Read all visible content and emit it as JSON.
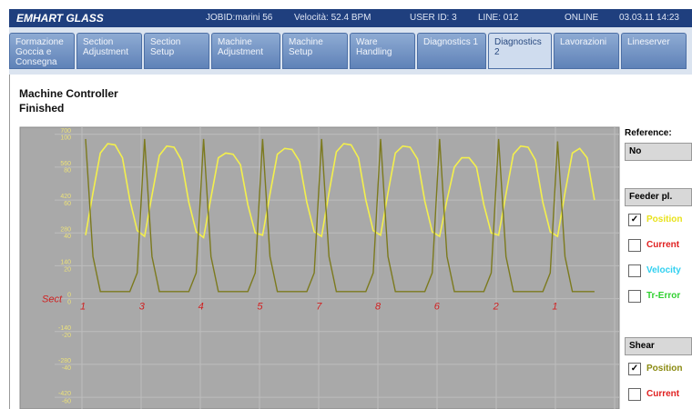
{
  "header": {
    "brand": "EMHART GLASS",
    "job": "JOBID:marini 56",
    "speed": "Velocità: 52.4 BPM",
    "user": "USER ID: 3",
    "line": "LINE: 012",
    "status": "ONLINE",
    "datetime": "03.03.11 14:23"
  },
  "tabs": [
    "Formazione Goccia e Consegna",
    "Section Adjustment",
    "Section Setup",
    "Machine Adjustment",
    "Machine Setup",
    "Ware Handling",
    "Diagnostics 1",
    "Diagnostics 2",
    "Lavorazioni",
    "Lineserver"
  ],
  "active_tab": 7,
  "content": {
    "title": "Machine Controller",
    "status": "Finished"
  },
  "plot": {
    "ylim": [
      -470,
      730
    ],
    "yticks": [
      700,
      560,
      420,
      280,
      140,
      0,
      -140,
      -280,
      -420
    ],
    "y2lim": [
      -67,
      104
    ],
    "y2ticks": [
      100,
      80,
      60,
      40,
      20,
      0,
      -20,
      -40,
      -60
    ],
    "sect_label": "Sect",
    "sections": [
      "1",
      "3",
      "4",
      "5",
      "7",
      "8",
      "6",
      "2",
      "1"
    ],
    "series": [
      {
        "name": "Feeder pl. Position",
        "color": "#f4f04c",
        "values": [
          270,
          450,
          620,
          660,
          655,
          600,
          420,
          290,
          265,
          440,
          610,
          650,
          645,
          590,
          410,
          285,
          260,
          430,
          600,
          620,
          615,
          570,
          400,
          280,
          270,
          445,
          615,
          640,
          635,
          585,
          410,
          285,
          265,
          450,
          625,
          660,
          655,
          600,
          420,
          290,
          270,
          450,
          620,
          650,
          645,
          595,
          415,
          285,
          265,
          420,
          560,
          600,
          600,
          560,
          400,
          280,
          270,
          445,
          615,
          650,
          645,
          590,
          410,
          285,
          265,
          450,
          620,
          640,
          600,
          420
        ]
      },
      {
        "name": "Shear Position",
        "color": "#7c7a1e",
        "values": [
          680,
          180,
          30,
          30,
          30,
          30,
          30,
          110,
          680,
          180,
          30,
          30,
          30,
          30,
          30,
          110,
          680,
          180,
          30,
          30,
          30,
          30,
          30,
          110,
          680,
          180,
          30,
          30,
          30,
          30,
          30,
          110,
          680,
          180,
          30,
          30,
          30,
          30,
          30,
          110,
          680,
          180,
          30,
          30,
          30,
          30,
          30,
          110,
          680,
          180,
          30,
          30,
          30,
          30,
          30,
          110,
          680,
          180,
          30,
          30,
          30,
          30,
          30,
          110,
          670,
          180,
          30,
          30,
          30,
          30
        ]
      }
    ]
  },
  "panel": {
    "reference_label": "Reference:",
    "reference_value": "No",
    "group1": "Feeder pl.",
    "group1_items": [
      {
        "label": "Position",
        "color": "#e8e21a",
        "checked": true
      },
      {
        "label": "Current",
        "color": "#e02020",
        "checked": false
      },
      {
        "label": "Velocity",
        "color": "#30d0f0",
        "checked": false
      },
      {
        "label": "Tr-Error",
        "color": "#30d030",
        "checked": false
      }
    ],
    "group2": "Shear",
    "group2_items": [
      {
        "label": "Position",
        "color": "#8a8a10",
        "checked": true
      },
      {
        "label": "Current",
        "color": "#e02020",
        "checked": false
      }
    ]
  }
}
